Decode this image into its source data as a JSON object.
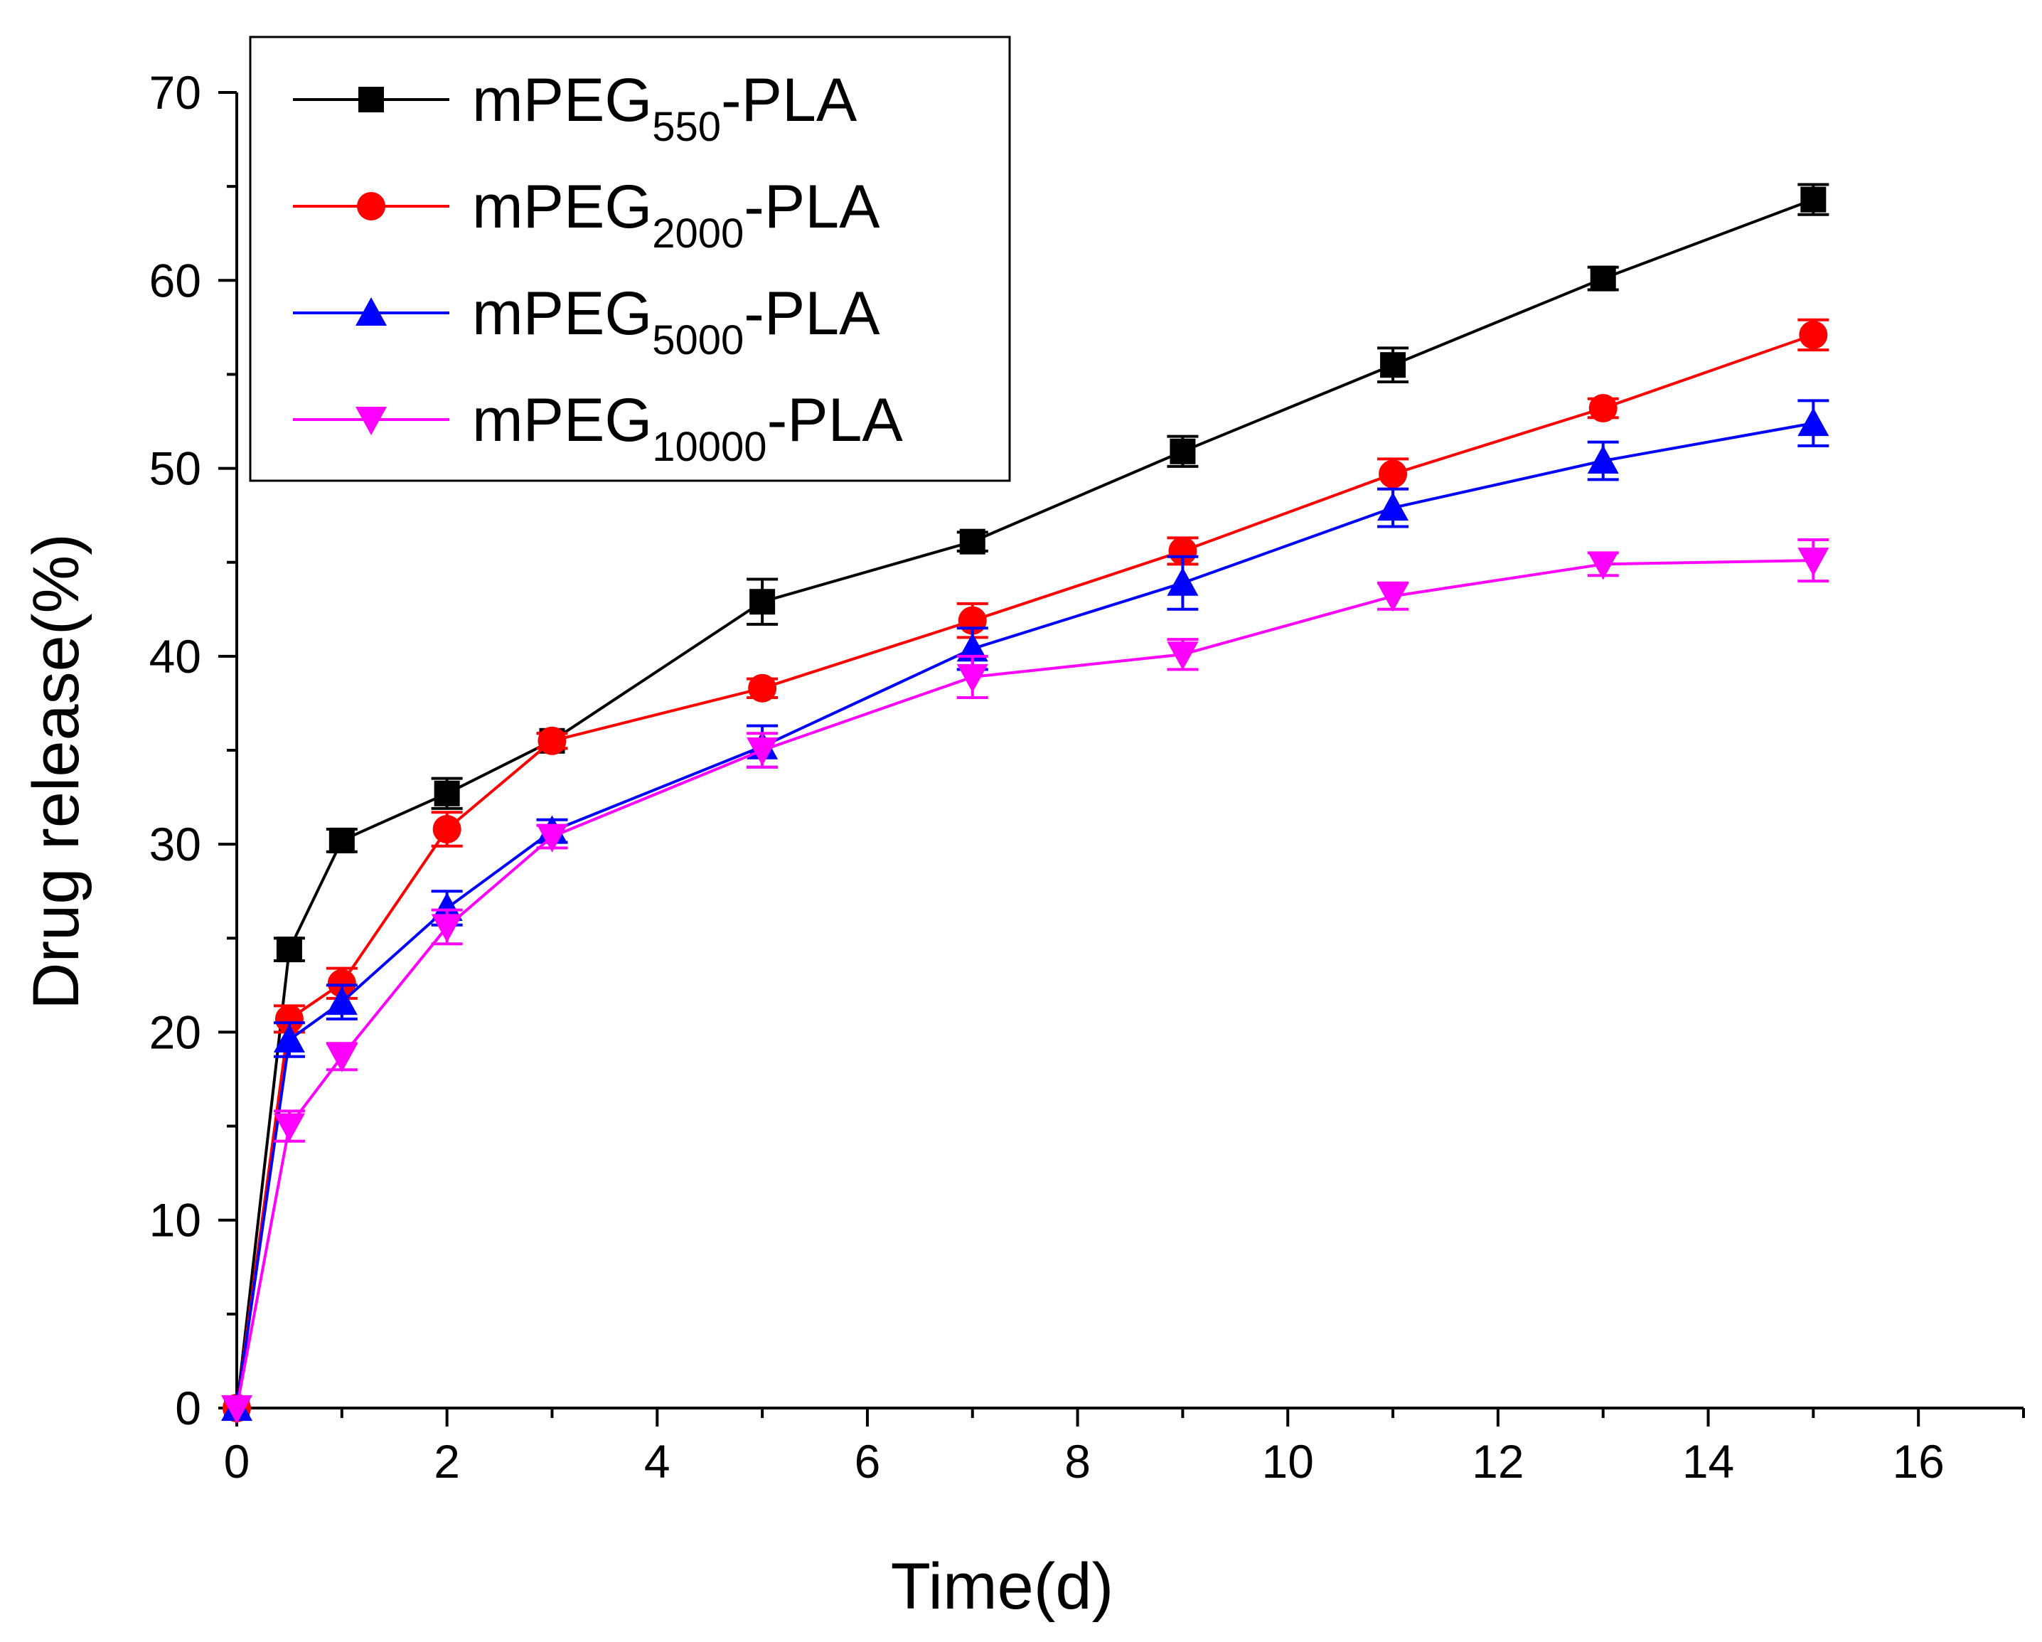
{
  "chart_data": {
    "type": "line",
    "title": "",
    "xlabel": "Time(d)",
    "ylabel": "Drug release(%)",
    "xlim": [
      0,
      17
    ],
    "ylim": [
      0,
      70
    ],
    "xticks": [
      0,
      2,
      4,
      6,
      8,
      10,
      12,
      14,
      16
    ],
    "yticks": [
      0,
      10,
      20,
      30,
      40,
      50,
      60,
      70
    ],
    "x": [
      0,
      0.5,
      1,
      2,
      3,
      5,
      7,
      9,
      11,
      13,
      15
    ],
    "legend_position": "top-left",
    "series": [
      {
        "name": "mPEG550-PLA",
        "name_main": "mPEG",
        "name_sub": "550",
        "name_tail": "-PLA",
        "color": "#000000",
        "marker": "square",
        "values": [
          0,
          24.4,
          30.2,
          32.7,
          35.5,
          42.9,
          46.1,
          50.9,
          55.5,
          60.1,
          64.3
        ],
        "errors": [
          0,
          0.6,
          0.6,
          0.8,
          0.4,
          1.2,
          0.5,
          0.8,
          0.9,
          0.6,
          0.8
        ]
      },
      {
        "name": "mPEG2000-PLA",
        "name_main": "mPEG",
        "name_sub": "2000",
        "name_tail": "-PLA",
        "color": "#ff0000",
        "marker": "circle",
        "values": [
          0,
          20.7,
          22.6,
          30.8,
          35.5,
          38.3,
          41.9,
          45.6,
          49.7,
          53.2,
          57.1
        ],
        "errors": [
          0,
          0.7,
          0.8,
          0.9,
          0.4,
          0.5,
          0.9,
          0.7,
          0.8,
          0.5,
          0.8
        ]
      },
      {
        "name": "mPEG5000-PLA",
        "name_main": "mPEG",
        "name_sub": "5000",
        "name_tail": "-PLA",
        "color": "#0000ff",
        "marker": "triangle-up",
        "values": [
          0,
          19.6,
          21.6,
          26.6,
          30.7,
          35.2,
          40.4,
          43.9,
          47.9,
          50.4,
          52.4
        ],
        "errors": [
          0,
          0.9,
          0.9,
          0.9,
          0.6,
          1.1,
          1.1,
          1.4,
          1.0,
          1.0,
          1.2
        ]
      },
      {
        "name": "mPEG10000-PLA",
        "name_main": "mPEG",
        "name_sub": "10000",
        "name_tail": "-PLA",
        "color": "#ff00ff",
        "marker": "triangle-down",
        "values": [
          0,
          15.0,
          18.7,
          25.6,
          30.4,
          35.0,
          38.9,
          40.1,
          43.2,
          44.9,
          45.1
        ],
        "errors": [
          0,
          0.8,
          0.7,
          0.9,
          0.6,
          0.9,
          1.1,
          0.8,
          0.7,
          0.6,
          1.1
        ]
      }
    ]
  }
}
